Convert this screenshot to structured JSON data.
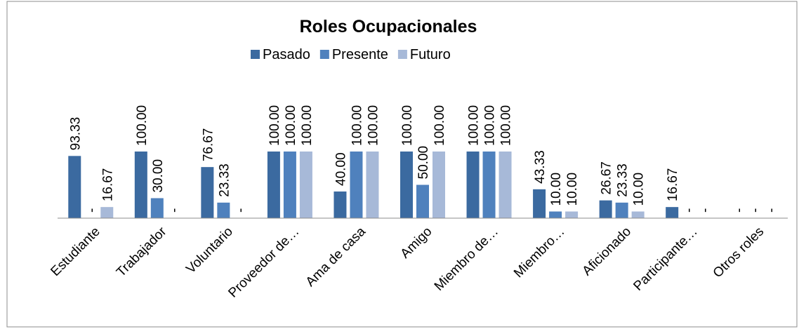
{
  "chart_data": {
    "type": "bar",
    "title": "Roles Ocupacionales",
    "categories": [
      "Estudiante",
      "Trabajador",
      "Voluntario",
      "Proveedor de…",
      "Ama de casa",
      "Amigo",
      "Miembro de…",
      "Miembro…",
      "Aficionado",
      "Participante…",
      "Otros roles"
    ],
    "series": [
      {
        "name": "Pasado",
        "color": "#3b6aa0",
        "values": [
          93.33,
          100,
          76.67,
          100,
          40,
          100,
          100,
          43.33,
          26.67,
          16.67,
          0
        ],
        "value_labels": [
          "93.33",
          "100.00",
          "76.67",
          "100.00",
          "40.00",
          "100.00",
          "100.00",
          "43.33",
          "26.67",
          "16.67",
          "-"
        ]
      },
      {
        "name": "Presente",
        "color": "#4f81bd",
        "values": [
          0,
          30,
          23.33,
          100,
          100,
          50,
          100,
          10,
          23.33,
          0,
          0
        ],
        "value_labels": [
          "-",
          "30.00",
          "23.33",
          "100.00",
          "100.00",
          "50.00",
          "100.00",
          "10.00",
          "23.33",
          "-",
          "-"
        ]
      },
      {
        "name": "Futuro",
        "color": "#a7b9d8",
        "values": [
          16.67,
          0,
          0,
          100,
          100,
          100,
          100,
          10,
          10,
          0,
          0
        ],
        "value_labels": [
          "16.67",
          "-",
          "-",
          "100.00",
          "100.00",
          "100.00",
          "100.00",
          "10.00",
          "10.00",
          "-",
          "-"
        ]
      }
    ],
    "ylim": [
      0,
      100
    ],
    "legend": "top"
  }
}
